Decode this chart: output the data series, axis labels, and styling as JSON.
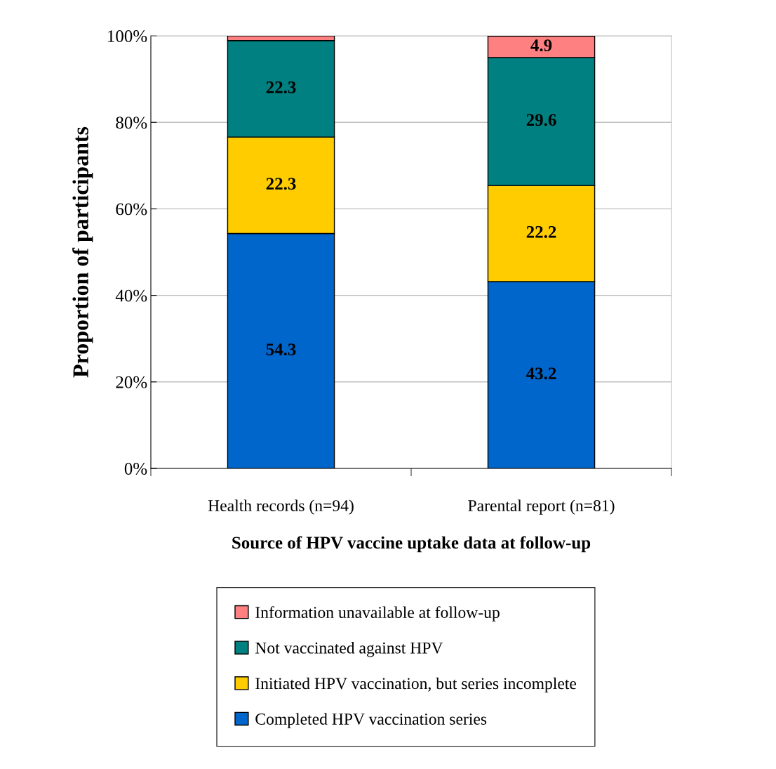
{
  "chart_data": {
    "type": "bar",
    "stacked": true,
    "categories": [
      "Health records (n=94)",
      "Parental report (n=81)"
    ],
    "xlabel": "Source of HPV vaccine uptake data at follow-up",
    "ylabel": "Proportion of participants",
    "ylim": [
      0,
      100
    ],
    "yticks": [
      {
        "value": 0,
        "label": "0%"
      },
      {
        "value": 20,
        "label": "20%"
      },
      {
        "value": 40,
        "label": "40%"
      },
      {
        "value": 60,
        "label": "60%"
      },
      {
        "value": 80,
        "label": "80%"
      },
      {
        "value": 100,
        "label": "100%"
      }
    ],
    "grid": "y",
    "legend": "bottom",
    "series": [
      {
        "name": "Completed HPV vaccination series",
        "color": "#0066cc",
        "values": [
          54.3,
          43.2
        ],
        "value_labels": [
          "54.3",
          "43.2"
        ]
      },
      {
        "name": "Initiated HPV vaccination, but series incomplete",
        "color": "#ffcc00",
        "values": [
          22.3,
          22.2
        ],
        "value_labels": [
          "22.3",
          "22.2"
        ]
      },
      {
        "name": "Not vaccinated against HPV",
        "color": "#008080",
        "values": [
          22.3,
          29.6
        ],
        "value_labels": [
          "22.3",
          "29.6"
        ]
      },
      {
        "name": "Information unavailable at follow-up",
        "color": "#ff8080",
        "values": [
          1.1,
          4.9
        ],
        "value_labels": [
          null,
          "4.9"
        ]
      }
    ]
  }
}
